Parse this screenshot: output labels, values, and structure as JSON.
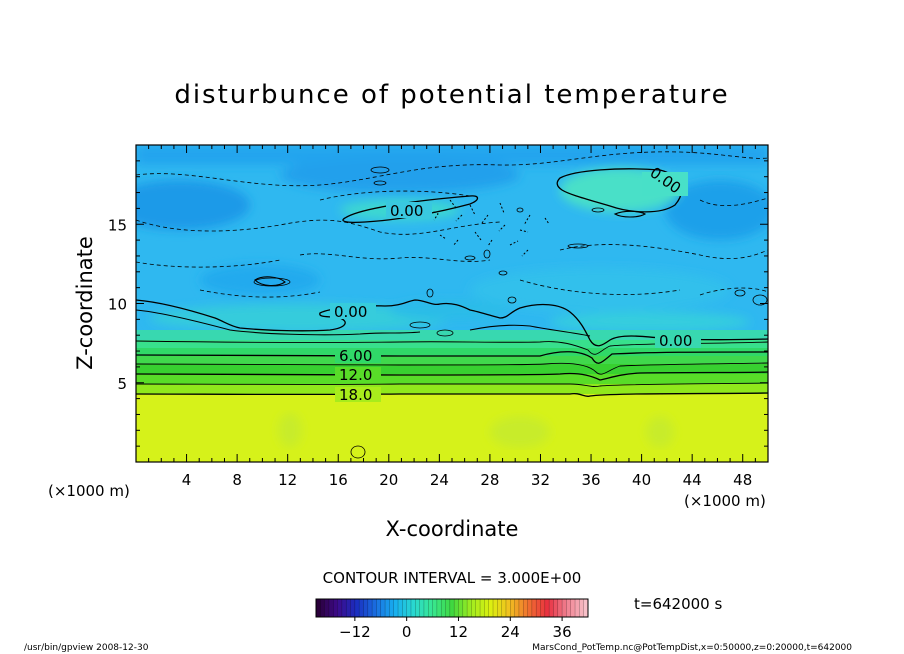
{
  "chart_data": {
    "type": "heatmap",
    "title": "disturbunce of potential temperature",
    "xlabel": "X-coordinate",
    "ylabel": "Z-coordinate",
    "x_unit_left": "(×1000 m)",
    "x_unit_right": "(×1000 m)",
    "xlim": [
      0,
      50
    ],
    "ylim": [
      0,
      20
    ],
    "x_ticks": [
      4,
      8,
      12,
      16,
      20,
      24,
      28,
      32,
      36,
      40,
      44,
      48
    ],
    "y_ticks": [
      5,
      10,
      15
    ],
    "contour_interval": "CONTOUR INTERVAL = 3.000E+00",
    "contour_levels": [
      0,
      3,
      6,
      9,
      12,
      15,
      18
    ],
    "contour_labels": [
      {
        "text": "0.00",
        "x": 19.2,
        "z": 15.8
      },
      {
        "text": "0.00",
        "x": 40.7,
        "z": 17.6
      },
      {
        "text": "0.00",
        "x": 17.1,
        "z": 9.5
      },
      {
        "text": "0.00",
        "x": 42.2,
        "z": 7.8
      },
      {
        "text": "6.00",
        "x": 17.6,
        "z": 6.7
      },
      {
        "text": "12.0",
        "x": 17.6,
        "z": 5.6
      },
      {
        "text": "18.0",
        "x": 17.6,
        "z": 4.3
      }
    ],
    "colorbar": {
      "range": [
        -21,
        42
      ],
      "ticks": [
        -12,
        0,
        12,
        24,
        36
      ],
      "colors": [
        "#2a003a",
        "#3d0a8a",
        "#1a2ec0",
        "#1a6ee0",
        "#18aef0",
        "#2ad8d0",
        "#38e890",
        "#40d840",
        "#a0ec20",
        "#dcf010",
        "#f0c020",
        "#f07030",
        "#e83040",
        "#f08090",
        "#f8c0c8"
      ]
    },
    "time_label": "t=642000 s",
    "grid": false
  },
  "footer": {
    "left": "/usr/bin/gpview   2008-12-30",
    "right": "MarsCond_PotTemp.nc@PotTempDist,x=0:50000,z=0:20000,t=642000"
  }
}
